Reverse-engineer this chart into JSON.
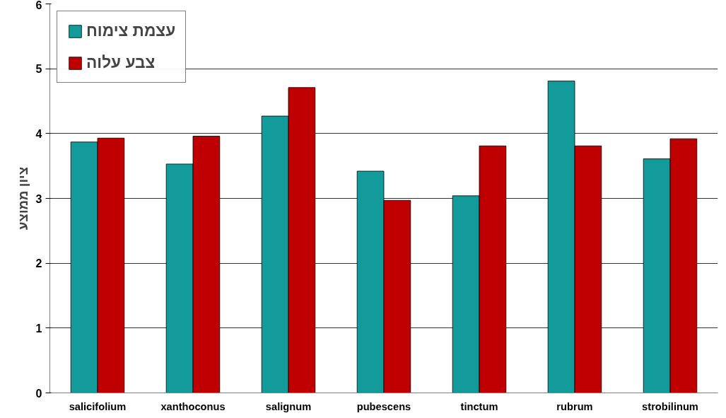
{
  "chart_data": {
    "type": "bar",
    "ylabel": "ציון ממוצע",
    "categories": [
      "salicifolium",
      "xanthoconus",
      "salignum",
      "pubescens",
      "tinctum",
      "rubrum",
      "strobilinum"
    ],
    "series": [
      {
        "name": "עצמת צימוח",
        "color": "#139b9b",
        "values": [
          3.87,
          3.53,
          4.27,
          3.42,
          3.04,
          4.81,
          3.61
        ]
      },
      {
        "name": "צבע עלוה",
        "color": "#c00000",
        "values": [
          3.93,
          3.96,
          4.71,
          2.97,
          3.81,
          3.81,
          3.92
        ]
      }
    ],
    "ylim": [
      0,
      6
    ],
    "yticks": [
      0,
      1,
      2,
      3,
      4,
      5,
      6
    ],
    "grid": "y",
    "legend": "top left"
  }
}
